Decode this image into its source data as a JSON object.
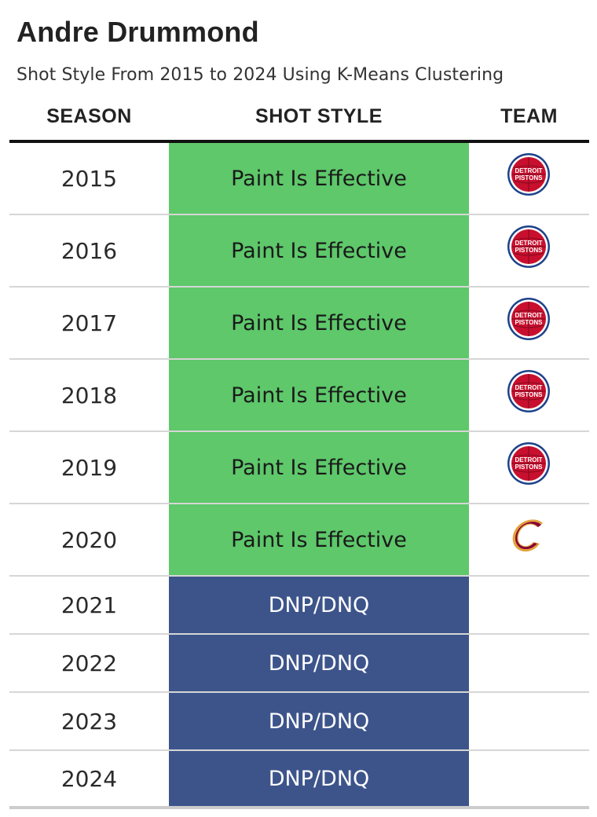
{
  "title": "Andre Drummond",
  "subtitle": "Shot Style From 2015 to 2024 Using K-Means Clustering",
  "headers": {
    "season": "SEASON",
    "shot_style": "SHOT STYLE",
    "team": "TEAM"
  },
  "colors": {
    "effective_bg": "#5ec86a",
    "effective_text": "#1a1a1a",
    "dnp_bg": "#3d548b",
    "dnp_text": "#ffffff"
  },
  "logo_text": {
    "pistons_line1": "DETROIT",
    "pistons_line2": "PISTONS",
    "cavs_letter": "C"
  },
  "rows": [
    {
      "season": "2015",
      "style": "Paint Is Effective",
      "kind": "effective",
      "team_icon": "pistons-logo-icon"
    },
    {
      "season": "2016",
      "style": "Paint Is Effective",
      "kind": "effective",
      "team_icon": "pistons-logo-icon"
    },
    {
      "season": "2017",
      "style": "Paint Is Effective",
      "kind": "effective",
      "team_icon": "pistons-logo-icon"
    },
    {
      "season": "2018",
      "style": "Paint Is Effective",
      "kind": "effective",
      "team_icon": "pistons-logo-icon"
    },
    {
      "season": "2019",
      "style": "Paint Is Effective",
      "kind": "effective",
      "team_icon": "pistons-logo-icon"
    },
    {
      "season": "2020",
      "style": "Paint Is Effective",
      "kind": "effective",
      "team_icon": "cavaliers-logo-icon"
    },
    {
      "season": "2021",
      "style": "DNP/DNQ",
      "kind": "dnp",
      "team_icon": ""
    },
    {
      "season": "2022",
      "style": "DNP/DNQ",
      "kind": "dnp",
      "team_icon": ""
    },
    {
      "season": "2023",
      "style": "DNP/DNQ",
      "kind": "dnp",
      "team_icon": ""
    },
    {
      "season": "2024",
      "style": "DNP/DNQ",
      "kind": "dnp",
      "team_icon": ""
    }
  ]
}
